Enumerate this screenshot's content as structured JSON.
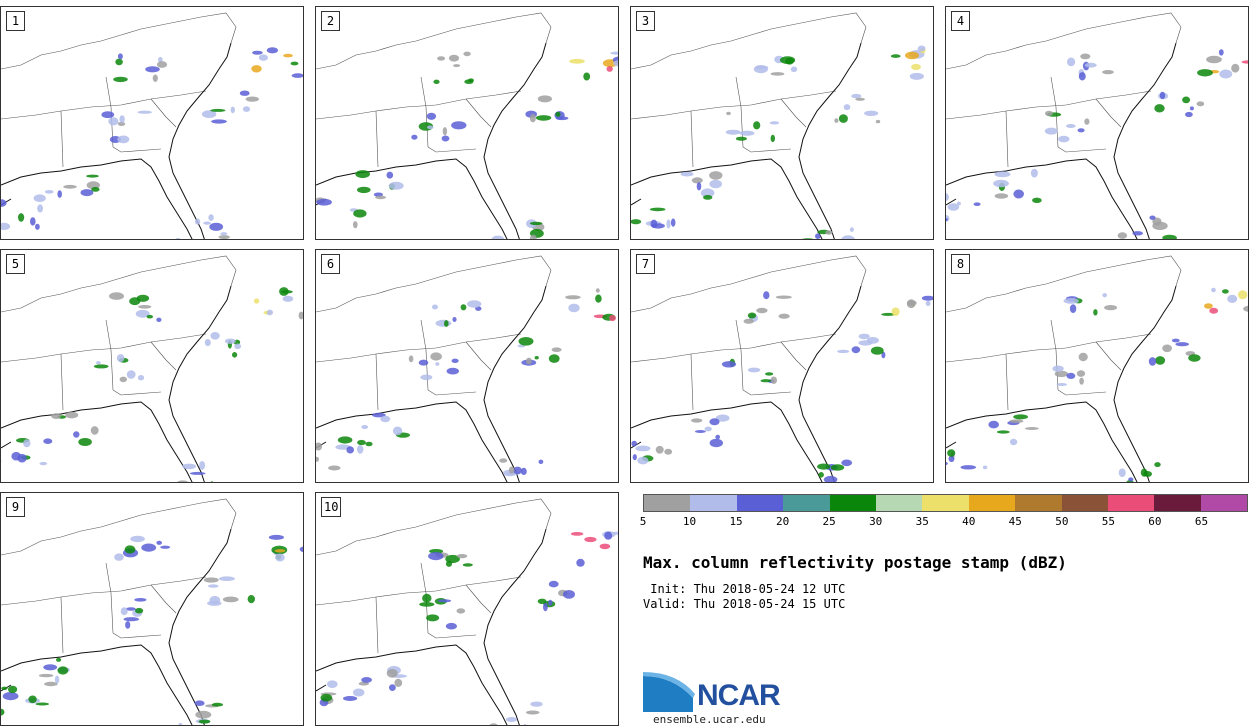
{
  "panels": [
    {
      "label": "1"
    },
    {
      "label": "2"
    },
    {
      "label": "3"
    },
    {
      "label": "4"
    },
    {
      "label": "5"
    },
    {
      "label": "6"
    },
    {
      "label": "7"
    },
    {
      "label": "8"
    },
    {
      "label": "9"
    },
    {
      "label": "10"
    }
  ],
  "colorbar": {
    "colors": [
      "#a0a0a0",
      "#b2bcea",
      "#5a5fd6",
      "#4a9a9a",
      "#0a860a",
      "#b6d9b4",
      "#ece06a",
      "#e8a81e",
      "#b07a2e",
      "#8a5236",
      "#ea4d78",
      "#6a1a3a",
      "#b04aa6"
    ],
    "ticks": [
      "5",
      "10",
      "15",
      "20",
      "25",
      "30",
      "35",
      "40",
      "45",
      "50",
      "55",
      "60",
      "65"
    ]
  },
  "title": "Max. column reflectivity postage stamp (dBZ)",
  "init": " Init: Thu 2018-05-24 12 UTC",
  "valid": "Valid: Thu 2018-05-24 15 UTC",
  "logo": {
    "text": "NCAR",
    "url": "ensemble.ucar.edu"
  }
}
